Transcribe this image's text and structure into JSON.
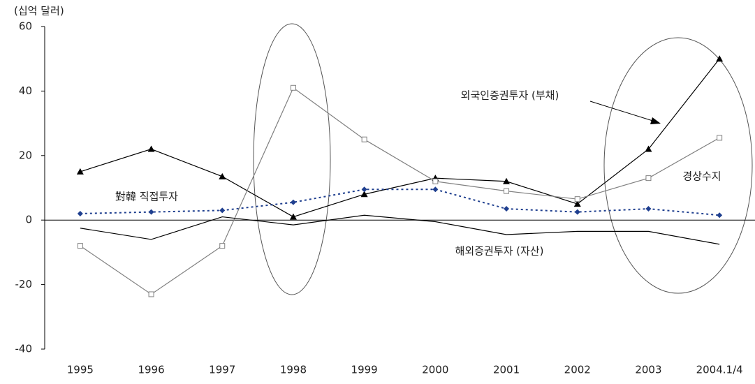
{
  "chart_data": {
    "type": "line",
    "y_label": "(십억 달러)",
    "categories": [
      "1995",
      "1996",
      "1997",
      "1998",
      "1999",
      "2000",
      "2001",
      "2002",
      "2003",
      "2004.1/4"
    ],
    "series": [
      {
        "name": "외국인증권투자 (부채)",
        "color": "#000000",
        "marker": "triangle",
        "dash": "solid",
        "values": [
          15,
          22,
          13.5,
          1,
          8,
          13,
          12,
          5,
          22,
          50
        ]
      },
      {
        "name": "경상수지",
        "color": "#808080",
        "marker": "square",
        "dash": "solid",
        "values": [
          -8,
          -23,
          -8,
          41,
          25,
          12,
          9,
          6.5,
          13,
          25.5
        ]
      },
      {
        "name": "對韓 직접투자",
        "color": "#1f3f8f",
        "marker": "diamond",
        "dash": "dotted",
        "values": [
          2,
          2.5,
          3,
          5.5,
          9.5,
          9.5,
          3.5,
          2.5,
          3.5,
          1.5
        ]
      },
      {
        "name": "해외증권투자 (자산)",
        "color": "#000000",
        "marker": "none",
        "dash": "solid",
        "values": [
          -2.5,
          -6,
          1,
          -1.5,
          1.5,
          -0.5,
          -4.5,
          -3.5,
          -3.5,
          -7.5
        ]
      }
    ],
    "ylim": [
      -40,
      60
    ],
    "yticks": [
      -40,
      -20,
      0,
      20,
      40,
      60
    ],
    "grid": false
  }
}
